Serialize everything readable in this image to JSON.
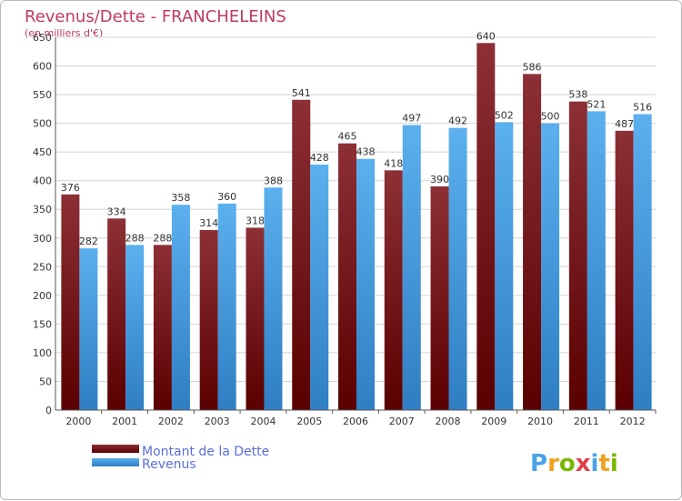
{
  "chart_data": {
    "type": "bar",
    "title": "Revenus/Dette - FRANCHELEINS",
    "subtitle": "(en milliers d'€)",
    "categories": [
      "2000",
      "2001",
      "2002",
      "2003",
      "2004",
      "2005",
      "2006",
      "2007",
      "2008",
      "2009",
      "2010",
      "2011",
      "2012"
    ],
    "series": [
      {
        "name": "Montant de la Dette",
        "color": "#6b0f14",
        "values": [
          376,
          334,
          288,
          314,
          318,
          541,
          465,
          418,
          390,
          640,
          586,
          538,
          487
        ]
      },
      {
        "name": "Revenus",
        "color": "#4aa3e6",
        "values": [
          282,
          288,
          358,
          360,
          388,
          428,
          438,
          497,
          492,
          502,
          500,
          521,
          516
        ]
      }
    ],
    "ylim": [
      0,
      650
    ],
    "yticks": [
      0,
      50,
      100,
      150,
      200,
      250,
      300,
      350,
      400,
      450,
      500,
      550,
      600,
      650
    ],
    "grid": true,
    "legend_position": "bottom-left"
  },
  "logo": {
    "text": "Proxiti",
    "letters": [
      "P",
      "r",
      "o",
      "x",
      "i",
      "t",
      "i"
    ],
    "colors": [
      "#4aa3e6",
      "#f0a020",
      "#7ab800",
      "#e0404a",
      "#4aa3e6",
      "#f0a020",
      "#7ab800"
    ]
  }
}
